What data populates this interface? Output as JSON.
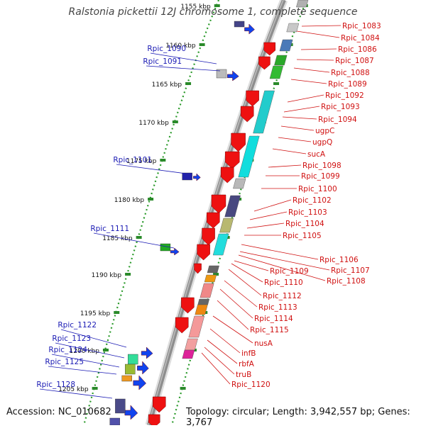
{
  "title": "Ralstonia pickettii 12J chromosome 1, complete sequence",
  "footer": {
    "accession": "Accession: NC_010682",
    "topology": "Topology: circular; Length: 3,942,557 bp; Genes: 3,767"
  },
  "colors": {
    "backbone": "#9a9a9a",
    "tick_dots": "#2a9a2a",
    "forward_label": "#d01010",
    "reverse_label": "#1a1ab4"
  },
  "scale_ticks": [
    "1155 kbp",
    "1160 kbp",
    "1165 kbp",
    "1170 kbp",
    "1175 kbp",
    "1180 kbp",
    "1185 kbp",
    "1190 kbp",
    "1195 kbp",
    "1200 kbp",
    "1205 kbp"
  ],
  "reverse_labels": [
    "Rpic_1090",
    "Rpic_1091",
    "Rpic_1101",
    "Rpic_1111",
    "Rpic_1122",
    "Rpic_1123",
    "Rpic_1124",
    "Rpic_1125",
    "Rpic_1128"
  ],
  "forward_labels": [
    "Rpic_1083",
    "Rpic_1084",
    "Rpic_1086",
    "Rpic_1087",
    "Rpic_1088",
    "Rpic_1089",
    "Rpic_1092",
    "Rpic_1093",
    "Rpic_1094",
    "ugpC",
    "ugpQ",
    "sucA",
    "Rpic_1098",
    "Rpic_1099",
    "Rpic_1100",
    "Rpic_1102",
    "Rpic_1103",
    "Rpic_1104",
    "Rpic_1105",
    "Rpic_1106",
    "Rpic_1107",
    "Rpic_1108",
    "Rpic_1109",
    "Rpic_1110",
    "Rpic_1112",
    "Rpic_1113",
    "Rpic_1114",
    "Rpic_1115",
    "nusA",
    "infB",
    "rbfA",
    "truB",
    "Rpic_1120"
  ]
}
